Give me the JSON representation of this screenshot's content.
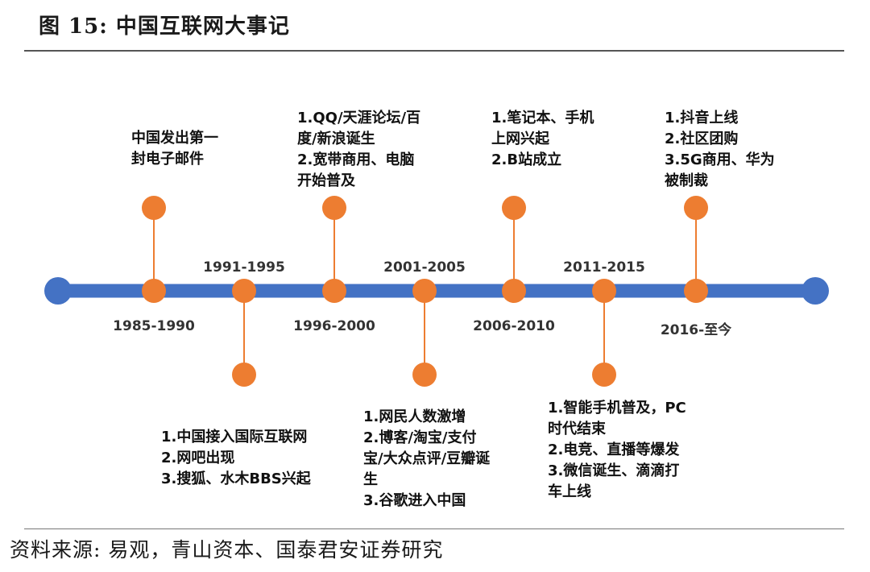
{
  "title": "图 15:  中国互联网大事记",
  "source": "资料来源:  易观，青山资本、国泰君安证券研究",
  "colors": {
    "axis": "#4472c4",
    "node": "#ed7d31",
    "connector": "#ed7d31"
  },
  "periods": [
    {
      "year": "1985-1990",
      "events": [
        "中国发出第一",
        "封电子邮件"
      ]
    },
    {
      "year": "1991-1995",
      "events": [
        "1.中国接入国际互联网",
        "2.网吧出现",
        "3.搜狐、水木BBS兴起"
      ]
    },
    {
      "year": "1996-2000",
      "events": [
        "1.QQ/天涯论坛/百",
        "度/新浪诞生",
        "2.宽带商用、电脑",
        "开始普及"
      ]
    },
    {
      "year": "2001-2005",
      "events": [
        "1.网民人数激增",
        "2.博客/淘宝/支付",
        "宝/大众点评/豆瓣诞",
        "生",
        "3.谷歌进入中国"
      ]
    },
    {
      "year": "2006-2010",
      "events": [
        "1.笔记本、手机",
        "上网兴起",
        "2.B站成立"
      ]
    },
    {
      "year": "2011-2015",
      "events": [
        "1.智能手机普及，PC",
        "时代结束",
        "2.电竞、直播等爆发",
        "3.微信诞生、滴滴打",
        "车上线"
      ]
    },
    {
      "year": "2016-至今",
      "events": [
        "1.抖音上线",
        "2.社区团购",
        "3.5G商用、华为",
        "被制裁"
      ]
    }
  ]
}
